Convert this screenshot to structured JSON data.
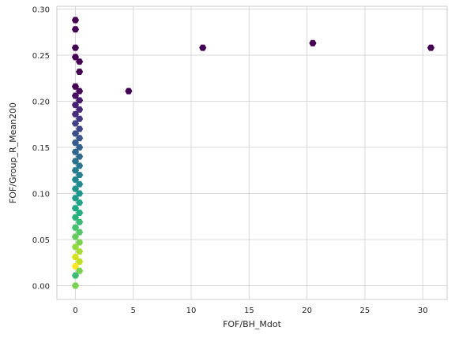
{
  "chart_data": {
    "type": "hexbin",
    "title": "",
    "xlabel": "FOF/BH_Mdot",
    "ylabel": "FOF/Group_R_Mean200",
    "xlim": [
      -1.6,
      32.1
    ],
    "ylim": [
      -0.015,
      0.303
    ],
    "xticks": [
      0,
      5,
      10,
      15,
      20,
      25,
      30
    ],
    "yticks": [
      0.0,
      0.05,
      0.1,
      0.15,
      0.2,
      0.25,
      0.3
    ],
    "xtick_labels": [
      "0",
      "5",
      "10",
      "15",
      "20",
      "25",
      "30"
    ],
    "ytick_labels": [
      "0.00",
      "0.05",
      "0.10",
      "0.15",
      "0.20",
      "0.25",
      "0.30"
    ],
    "grid": true,
    "colormap": "viridis",
    "bins": [
      {
        "x": 0.0,
        "y": 0.288,
        "c": "#440154"
      },
      {
        "x": 0.0,
        "y": 0.278,
        "c": "#440154"
      },
      {
        "x": 0.0,
        "y": 0.258,
        "c": "#440154"
      },
      {
        "x": 0.0,
        "y": 0.248,
        "c": "#440154"
      },
      {
        "x": 0.35,
        "y": 0.243,
        "c": "#440154"
      },
      {
        "x": 0.35,
        "y": 0.232,
        "c": "#440154"
      },
      {
        "x": 0.0,
        "y": 0.216,
        "c": "#440154"
      },
      {
        "x": 0.35,
        "y": 0.211,
        "c": "#46075a"
      },
      {
        "x": 0.0,
        "y": 0.206,
        "c": "#471063"
      },
      {
        "x": 0.35,
        "y": 0.201,
        "c": "#481a6c"
      },
      {
        "x": 0.0,
        "y": 0.196,
        "c": "#482173"
      },
      {
        "x": 0.35,
        "y": 0.191,
        "c": "#472a7a"
      },
      {
        "x": 0.0,
        "y": 0.186,
        "c": "#46307e"
      },
      {
        "x": 0.35,
        "y": 0.181,
        "c": "#443983"
      },
      {
        "x": 0.0,
        "y": 0.176,
        "c": "#424086"
      },
      {
        "x": 0.35,
        "y": 0.17,
        "c": "#3f4788"
      },
      {
        "x": 0.0,
        "y": 0.165,
        "c": "#3c4f8a"
      },
      {
        "x": 0.35,
        "y": 0.16,
        "c": "#3a548c"
      },
      {
        "x": 0.0,
        "y": 0.155,
        "c": "#375b8d"
      },
      {
        "x": 0.35,
        "y": 0.15,
        "c": "#34608d"
      },
      {
        "x": 0.0,
        "y": 0.145,
        "c": "#31668e"
      },
      {
        "x": 0.35,
        "y": 0.14,
        "c": "#2f6c8e"
      },
      {
        "x": 0.0,
        "y": 0.135,
        "c": "#2c718e"
      },
      {
        "x": 0.35,
        "y": 0.13,
        "c": "#2a768e"
      },
      {
        "x": 0.0,
        "y": 0.125,
        "c": "#287c8e"
      },
      {
        "x": 0.35,
        "y": 0.12,
        "c": "#26818e"
      },
      {
        "x": 0.0,
        "y": 0.115,
        "c": "#24868e"
      },
      {
        "x": 0.35,
        "y": 0.11,
        "c": "#228b8d"
      },
      {
        "x": 0.0,
        "y": 0.105,
        "c": "#21918c"
      },
      {
        "x": 0.35,
        "y": 0.1,
        "c": "#1f968b"
      },
      {
        "x": 0.0,
        "y": 0.095,
        "c": "#1e9c89"
      },
      {
        "x": 0.35,
        "y": 0.09,
        "c": "#20a386"
      },
      {
        "x": 0.0,
        "y": 0.084,
        "c": "#22a884"
      },
      {
        "x": 0.35,
        "y": 0.079,
        "c": "#26ad81"
      },
      {
        "x": 0.0,
        "y": 0.074,
        "c": "#2db27d"
      },
      {
        "x": 0.35,
        "y": 0.069,
        "c": "#3bbb75"
      },
      {
        "x": 0.0,
        "y": 0.063,
        "c": "#47c16e"
      },
      {
        "x": 0.35,
        "y": 0.058,
        "c": "#56c667"
      },
      {
        "x": 0.0,
        "y": 0.053,
        "c": "#65cb5e"
      },
      {
        "x": 0.35,
        "y": 0.047,
        "c": "#7ad151"
      },
      {
        "x": 0.0,
        "y": 0.042,
        "c": "#95d840"
      },
      {
        "x": 0.35,
        "y": 0.037,
        "c": "#a8db34"
      },
      {
        "x": 0.0,
        "y": 0.031,
        "c": "#d8e219"
      },
      {
        "x": 0.35,
        "y": 0.026,
        "c": "#c0df25"
      },
      {
        "x": 0.0,
        "y": 0.021,
        "c": "#fde725"
      },
      {
        "x": 0.35,
        "y": 0.016,
        "c": "#7ad151"
      },
      {
        "x": 0.0,
        "y": 0.011,
        "c": "#3bbb75"
      },
      {
        "x": 0.0,
        "y": 0.0,
        "c": "#7ad151"
      },
      {
        "x": 4.6,
        "y": 0.211,
        "c": "#440154"
      },
      {
        "x": 11.0,
        "y": 0.258,
        "c": "#440154"
      },
      {
        "x": 20.5,
        "y": 0.263,
        "c": "#440154"
      },
      {
        "x": 30.7,
        "y": 0.258,
        "c": "#440154"
      }
    ]
  }
}
